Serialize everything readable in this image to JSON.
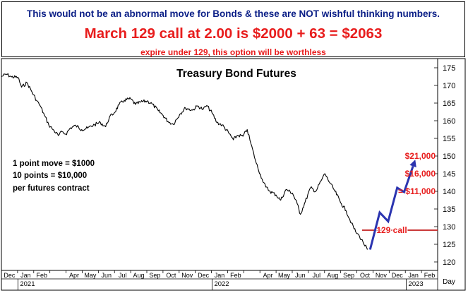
{
  "header": {
    "line1": "This would not be an abnormal move for Bonds & these are NOT wishful thinking numbers.",
    "line2": "March 129 call at 2.00 is $2000 + 63 = $2063",
    "line3": "expire under 129, this option will be worthless"
  },
  "colors": {
    "header_blue": "#0a1e86",
    "accent_red": "#e81d1d",
    "projection_blue": "#2b34b0",
    "price_line": "#000000"
  },
  "chart_data": {
    "type": "line",
    "title": "Treasury Bond Futures",
    "xlabel": "Day",
    "ylim": [
      120,
      177
    ],
    "yticks": [
      120,
      125,
      130,
      135,
      140,
      145,
      150,
      155,
      160,
      165,
      170,
      175
    ],
    "month_labels": [
      "Dec",
      "Jan",
      "Feb",
      "Apr",
      "May",
      "Jun",
      "Jul",
      "Aug",
      "Sep",
      "Oct",
      "Nov",
      "Dec",
      "Jan",
      "Feb",
      "Apr",
      "May",
      "Jun",
      "Jul",
      "Aug",
      "Sep",
      "Oct",
      "Nov",
      "Dec",
      "Jan",
      "Feb"
    ],
    "year_labels": [
      "2021",
      "2022",
      "2023"
    ],
    "series": [
      {
        "values": [
          [
            "2020-12-01",
            172.5
          ],
          [
            "2020-12-10",
            173.2
          ],
          [
            "2020-12-20",
            172.4
          ],
          [
            "2021-01-01",
            172.3
          ],
          [
            "2021-01-08",
            169.5
          ],
          [
            "2021-01-18",
            170.8
          ],
          [
            "2021-01-28",
            168.0
          ],
          [
            "2021-02-05",
            165.8
          ],
          [
            "2021-02-12",
            164.2
          ],
          [
            "2021-02-20",
            161.5
          ],
          [
            "2021-02-28",
            158.8
          ],
          [
            "2021-03-08",
            157.5
          ],
          [
            "2021-03-18",
            155.8
          ],
          [
            "2021-03-25",
            156.9
          ],
          [
            "2021-04-01",
            156.2
          ],
          [
            "2021-04-10",
            158.0
          ],
          [
            "2021-04-20",
            158.6
          ],
          [
            "2021-05-01",
            157.5
          ],
          [
            "2021-05-12",
            157.9
          ],
          [
            "2021-05-25",
            158.9
          ],
          [
            "2021-06-05",
            159.5
          ],
          [
            "2021-06-15",
            158.3
          ],
          [
            "2021-06-22",
            161.0
          ],
          [
            "2021-07-01",
            162.2
          ],
          [
            "2021-07-10",
            164.5
          ],
          [
            "2021-07-20",
            165.8
          ],
          [
            "2021-08-01",
            166.2
          ],
          [
            "2021-08-10",
            164.6
          ],
          [
            "2021-08-20",
            165.3
          ],
          [
            "2021-09-01",
            165.6
          ],
          [
            "2021-09-10",
            164.8
          ],
          [
            "2021-09-22",
            162.8
          ],
          [
            "2021-10-01",
            161.5
          ],
          [
            "2021-10-10",
            159.8
          ],
          [
            "2021-10-20",
            159.0
          ],
          [
            "2021-11-01",
            161.8
          ],
          [
            "2021-11-12",
            163.6
          ],
          [
            "2021-11-25",
            163.0
          ],
          [
            "2021-12-05",
            164.2
          ],
          [
            "2021-12-15",
            163.2
          ],
          [
            "2021-12-22",
            164.3
          ],
          [
            "2022-01-01",
            162.2
          ],
          [
            "2022-01-10",
            159.5
          ],
          [
            "2022-01-20",
            158.8
          ],
          [
            "2022-02-01",
            156.6
          ],
          [
            "2022-02-10",
            154.6
          ],
          [
            "2022-02-18",
            155.9
          ],
          [
            "2022-02-28",
            155.6
          ],
          [
            "2022-03-08",
            157.5
          ],
          [
            "2022-03-15",
            153.5
          ],
          [
            "2022-03-25",
            148.0
          ],
          [
            "2022-04-05",
            143.5
          ],
          [
            "2022-04-12",
            141.2
          ],
          [
            "2022-04-20",
            140.0
          ],
          [
            "2022-05-01",
            139.0
          ],
          [
            "2022-05-10",
            137.5
          ],
          [
            "2022-05-20",
            140.5
          ],
          [
            "2022-06-01",
            139.5
          ],
          [
            "2022-06-10",
            136.5
          ],
          [
            "2022-06-16",
            133.5
          ],
          [
            "2022-06-25",
            137.0
          ],
          [
            "2022-07-05",
            141.0
          ],
          [
            "2022-07-15",
            140.0
          ],
          [
            "2022-07-25",
            143.0
          ],
          [
            "2022-08-01",
            145.0
          ],
          [
            "2022-08-10",
            142.5
          ],
          [
            "2022-08-20",
            140.0
          ],
          [
            "2022-09-01",
            136.5
          ],
          [
            "2022-09-10",
            134.5
          ],
          [
            "2022-09-20",
            131.0
          ],
          [
            "2022-09-28",
            128.5
          ],
          [
            "2022-10-05",
            127.3
          ],
          [
            "2022-10-12",
            125.5
          ],
          [
            "2022-10-20",
            123.5
          ]
        ]
      }
    ],
    "projection": {
      "points": [
        [
          "2022-10-25",
          123.5
        ],
        [
          "2022-11-12",
          134.0
        ],
        [
          "2022-11-28",
          131.5
        ],
        [
          "2022-12-15",
          141.0
        ],
        [
          "2022-12-28",
          139.8
        ],
        [
          "2023-01-18",
          149.0
        ]
      ]
    },
    "strike_line": {
      "value": 129,
      "from": "2022-10-10",
      "label": "129 call"
    },
    "annotations": {
      "point_info": [
        "1 point move = $1000",
        "10 points = $10,000",
        "per futures contract"
      ],
      "targets": [
        {
          "label": "$21,000",
          "price": 150
        },
        {
          "label": "$16,000",
          "price": 145
        },
        {
          "label": "= $11,000",
          "price": 140
        }
      ]
    }
  }
}
